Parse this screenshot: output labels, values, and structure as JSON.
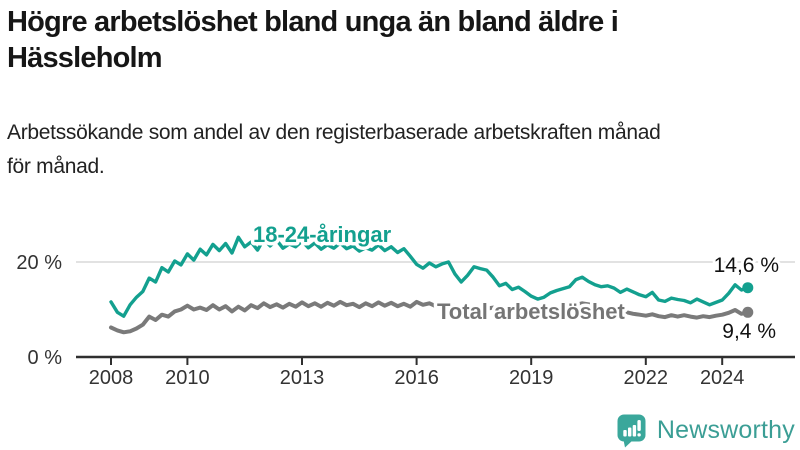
{
  "header": {
    "title_lines": [
      "Högre arbetslöshet bland unga än bland äldre i",
      "Hässleholm"
    ],
    "subtitle_lines": [
      "Arbetssökande som andel av den registerbaserade arbetskraften månad",
      "för månad."
    ]
  },
  "chart_data": {
    "type": "line",
    "title": "Högre arbetslöshet bland unga än bland äldre i Hässleholm",
    "subtitle": "Arbetssökande som andel av den registerbaserade arbetskraften månad för månad.",
    "unit": "percent",
    "x_start": 2008,
    "x_step": 0.1667,
    "xlim": [
      2008,
      2024.8
    ],
    "ylim": [
      0,
      30
    ],
    "grid": "y-only",
    "legend_position": "inline-labels",
    "x_ticks": [
      2008,
      2010,
      2013,
      2016,
      2019,
      2022,
      2024
    ],
    "y_ticks": [
      {
        "value": 0,
        "label": "0 %"
      },
      {
        "value": 20,
        "label": "20 %"
      }
    ],
    "axis_color": "#2f2f2f",
    "grid_color": "#d9d9d9",
    "series": [
      {
        "name": "18-24-åringar",
        "color": "#13a08f",
        "end_label": "14,6 %",
        "end_value": 14.6,
        "values": [
          11.6,
          9.4,
          8.6,
          11.0,
          12.6,
          13.8,
          16.6,
          15.8,
          18.8,
          17.9,
          20.2,
          19.4,
          21.7,
          20.4,
          22.7,
          21.5,
          23.7,
          22.4,
          23.9,
          21.9,
          25.2,
          23.2,
          24.2,
          22.5,
          24.8,
          23.4,
          24.6,
          22.9,
          23.8,
          23.2,
          24.4,
          23.0,
          24.0,
          22.7,
          23.6,
          22.9,
          24.0,
          22.8,
          23.4,
          22.3,
          23.0,
          22.5,
          23.6,
          22.4,
          23.2,
          22.0,
          22.8,
          21.2,
          19.5,
          18.7,
          19.8,
          19.0,
          19.6,
          20.0,
          17.5,
          15.8,
          17.2,
          19.0,
          18.6,
          18.3,
          16.8,
          15.0,
          15.5,
          14.2,
          14.7,
          13.8,
          12.8,
          12.2,
          12.6,
          13.5,
          14.0,
          14.4,
          14.8,
          16.3,
          16.8,
          15.9,
          15.2,
          14.8,
          15.0,
          14.5,
          13.6,
          14.3,
          13.7,
          13.1,
          12.7,
          13.6,
          12.0,
          11.7,
          12.4,
          12.1,
          11.9,
          11.4,
          12.2,
          11.6,
          11.0,
          11.5,
          12.0,
          13.4,
          15.2,
          14.1,
          14.6
        ]
      },
      {
        "name": "Total arbetslöshet",
        "color": "#7a7a7a",
        "end_label": "9,4 %",
        "end_value": 9.4,
        "values": [
          6.2,
          5.6,
          5.2,
          5.4,
          6.0,
          6.8,
          8.5,
          7.8,
          8.9,
          8.5,
          9.6,
          10.0,
          10.8,
          10.0,
          10.4,
          9.9,
          10.9,
          10.0,
          10.7,
          9.6,
          10.6,
          9.8,
          10.9,
          10.3,
          11.3,
          10.5,
          11.1,
          10.4,
          11.2,
          10.6,
          11.5,
          10.7,
          11.3,
          10.6,
          11.4,
          10.8,
          11.6,
          10.9,
          11.2,
          10.5,
          11.3,
          10.7,
          11.5,
          10.8,
          11.4,
          10.7,
          11.2,
          10.6,
          11.6,
          11.0,
          11.3,
          10.7,
          11.0,
          10.5,
          10.8,
          10.4,
          10.7,
          10.3,
          10.6,
          10.2,
          10.4,
          10.0,
          10.3,
          9.9,
          10.1,
          9.8,
          10.0,
          9.7,
          9.9,
          10.1,
          10.3,
          10.5,
          10.7,
          11.0,
          11.3,
          11.1,
          10.8,
          10.6,
          10.3,
          10.0,
          9.7,
          9.4,
          9.1,
          8.9,
          8.7,
          9.0,
          8.6,
          8.4,
          8.8,
          8.5,
          8.8,
          8.5,
          8.3,
          8.6,
          8.4,
          8.7,
          8.9,
          9.3,
          9.9,
          9.1,
          9.4
        ]
      }
    ]
  },
  "footer": {
    "brand": "Newsworthy",
    "brand_color": "#3b9e95"
  }
}
